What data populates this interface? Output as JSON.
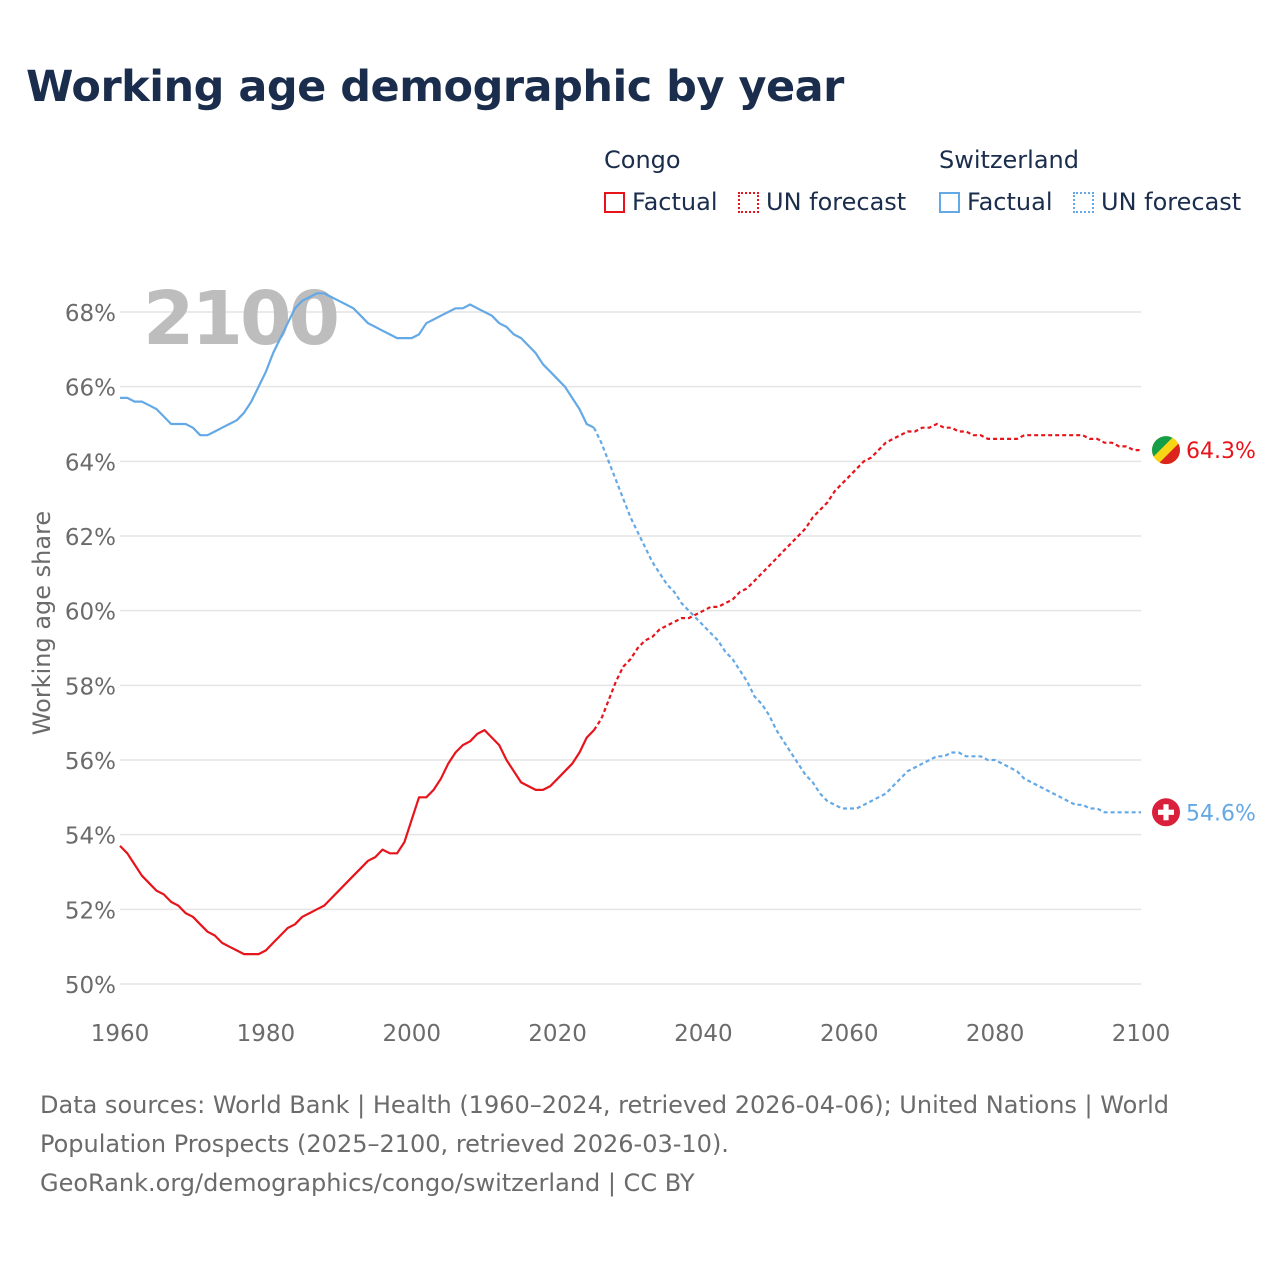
{
  "title": "Working age demographic by year",
  "legend": {
    "groups": [
      {
        "country": "Congo",
        "color": "#e8141c",
        "factual_label": "Factual",
        "forecast_label": "UN forecast"
      },
      {
        "country": "Switzerland",
        "color": "#64a9e6",
        "factual_label": "Factual",
        "forecast_label": "UN forecast"
      }
    ]
  },
  "footer": {
    "line1": "Data sources: World Bank | Health (1960–2024, retrieved 2026-04-06); United Nations | World",
    "line2": "Population Prospects (2025–2100, retrieved 2026-03-10).",
    "line3": "GeoRank.org/demographics/congo/switzerland | CC BY"
  },
  "chart_data": {
    "type": "line",
    "title": "Working age demographic by year",
    "year_watermark": "2100",
    "xlabel": "",
    "ylabel": "Working age share",
    "xlim": [
      1960,
      2100
    ],
    "ylim": [
      50,
      68
    ],
    "x_ticks": [
      1960,
      1980,
      2000,
      2020,
      2040,
      2060,
      2080,
      2100
    ],
    "x_tick_labels": [
      "1960",
      "1980",
      "2000",
      "2020",
      "2040",
      "2060",
      "2080",
      "2100"
    ],
    "y_ticks": [
      50,
      52,
      54,
      56,
      58,
      60,
      62,
      64,
      66,
      68
    ],
    "y_tick_labels": [
      "50%",
      "52%",
      "54%",
      "56%",
      "58%",
      "60%",
      "62%",
      "64%",
      "66%",
      "68%"
    ],
    "grid": true,
    "forecast_start_year": 2025,
    "series": [
      {
        "name": "Congo",
        "color": "#e8141c",
        "end_label": "64.3%",
        "flag_icon": "congo-flag-icon",
        "flag_colors": [
          "#149e48",
          "#f8d616",
          "#dc241f"
        ],
        "points": [
          [
            1960,
            53.7
          ],
          [
            1961,
            53.5
          ],
          [
            1962,
            53.2
          ],
          [
            1963,
            52.9
          ],
          [
            1964,
            52.7
          ],
          [
            1965,
            52.5
          ],
          [
            1966,
            52.4
          ],
          [
            1967,
            52.2
          ],
          [
            1968,
            52.1
          ],
          [
            1969,
            51.9
          ],
          [
            1970,
            51.8
          ],
          [
            1971,
            51.6
          ],
          [
            1972,
            51.4
          ],
          [
            1973,
            51.3
          ],
          [
            1974,
            51.1
          ],
          [
            1975,
            51.0
          ],
          [
            1976,
            50.9
          ],
          [
            1977,
            50.8
          ],
          [
            1978,
            50.8
          ],
          [
            1979,
            50.8
          ],
          [
            1980,
            50.9
          ],
          [
            1981,
            51.1
          ],
          [
            1982,
            51.3
          ],
          [
            1983,
            51.5
          ],
          [
            1984,
            51.6
          ],
          [
            1985,
            51.8
          ],
          [
            1986,
            51.9
          ],
          [
            1987,
            52.0
          ],
          [
            1988,
            52.1
          ],
          [
            1989,
            52.3
          ],
          [
            1990,
            52.5
          ],
          [
            1991,
            52.7
          ],
          [
            1992,
            52.9
          ],
          [
            1993,
            53.1
          ],
          [
            1994,
            53.3
          ],
          [
            1995,
            53.4
          ],
          [
            1996,
            53.6
          ],
          [
            1997,
            53.5
          ],
          [
            1998,
            53.5
          ],
          [
            1999,
            53.8
          ],
          [
            2000,
            54.4
          ],
          [
            2001,
            55.0
          ],
          [
            2002,
            55.0
          ],
          [
            2003,
            55.2
          ],
          [
            2004,
            55.5
          ],
          [
            2005,
            55.9
          ],
          [
            2006,
            56.2
          ],
          [
            2007,
            56.4
          ],
          [
            2008,
            56.5
          ],
          [
            2009,
            56.7
          ],
          [
            2010,
            56.8
          ],
          [
            2011,
            56.6
          ],
          [
            2012,
            56.4
          ],
          [
            2013,
            56.0
          ],
          [
            2014,
            55.7
          ],
          [
            2015,
            55.4
          ],
          [
            2016,
            55.3
          ],
          [
            2017,
            55.2
          ],
          [
            2018,
            55.2
          ],
          [
            2019,
            55.3
          ],
          [
            2020,
            55.5
          ],
          [
            2021,
            55.7
          ],
          [
            2022,
            55.9
          ],
          [
            2023,
            56.2
          ],
          [
            2024,
            56.6
          ],
          [
            2025,
            56.8
          ],
          [
            2026,
            57.1
          ],
          [
            2027,
            57.6
          ],
          [
            2028,
            58.1
          ],
          [
            2029,
            58.5
          ],
          [
            2030,
            58.7
          ],
          [
            2031,
            59.0
          ],
          [
            2032,
            59.2
          ],
          [
            2033,
            59.3
          ],
          [
            2034,
            59.5
          ],
          [
            2035,
            59.6
          ],
          [
            2036,
            59.7
          ],
          [
            2037,
            59.8
          ],
          [
            2038,
            59.8
          ],
          [
            2039,
            59.9
          ],
          [
            2040,
            60.0
          ],
          [
            2041,
            60.1
          ],
          [
            2042,
            60.1
          ],
          [
            2043,
            60.2
          ],
          [
            2044,
            60.3
          ],
          [
            2045,
            60.5
          ],
          [
            2046,
            60.6
          ],
          [
            2047,
            60.8
          ],
          [
            2048,
            61.0
          ],
          [
            2049,
            61.2
          ],
          [
            2050,
            61.4
          ],
          [
            2051,
            61.6
          ],
          [
            2052,
            61.8
          ],
          [
            2053,
            62.0
          ],
          [
            2054,
            62.2
          ],
          [
            2055,
            62.5
          ],
          [
            2056,
            62.7
          ],
          [
            2057,
            62.9
          ],
          [
            2058,
            63.2
          ],
          [
            2059,
            63.4
          ],
          [
            2060,
            63.6
          ],
          [
            2061,
            63.8
          ],
          [
            2062,
            64.0
          ],
          [
            2063,
            64.1
          ],
          [
            2064,
            64.3
          ],
          [
            2065,
            64.5
          ],
          [
            2066,
            64.6
          ],
          [
            2067,
            64.7
          ],
          [
            2068,
            64.8
          ],
          [
            2069,
            64.8
          ],
          [
            2070,
            64.9
          ],
          [
            2071,
            64.9
          ],
          [
            2072,
            65.0
          ],
          [
            2073,
            64.9
          ],
          [
            2074,
            64.9
          ],
          [
            2075,
            64.8
          ],
          [
            2076,
            64.8
          ],
          [
            2077,
            64.7
          ],
          [
            2078,
            64.7
          ],
          [
            2079,
            64.6
          ],
          [
            2080,
            64.6
          ],
          [
            2081,
            64.6
          ],
          [
            2082,
            64.6
          ],
          [
            2083,
            64.6
          ],
          [
            2084,
            64.7
          ],
          [
            2085,
            64.7
          ],
          [
            2086,
            64.7
          ],
          [
            2087,
            64.7
          ],
          [
            2088,
            64.7
          ],
          [
            2089,
            64.7
          ],
          [
            2090,
            64.7
          ],
          [
            2091,
            64.7
          ],
          [
            2092,
            64.7
          ],
          [
            2093,
            64.6
          ],
          [
            2094,
            64.6
          ],
          [
            2095,
            64.5
          ],
          [
            2096,
            64.5
          ],
          [
            2097,
            64.4
          ],
          [
            2098,
            64.4
          ],
          [
            2099,
            64.3
          ],
          [
            2100,
            64.3
          ]
        ]
      },
      {
        "name": "Switzerland",
        "color": "#64a9e6",
        "end_label": "54.6%",
        "flag_icon": "switzerland-flag-icon",
        "flag_colors": [
          "#da1f3d",
          "#ffffff"
        ],
        "points": [
          [
            1960,
            65.7
          ],
          [
            1961,
            65.7
          ],
          [
            1962,
            65.6
          ],
          [
            1963,
            65.6
          ],
          [
            1964,
            65.5
          ],
          [
            1965,
            65.4
          ],
          [
            1966,
            65.2
          ],
          [
            1967,
            65.0
          ],
          [
            1968,
            65.0
          ],
          [
            1969,
            65.0
          ],
          [
            1970,
            64.9
          ],
          [
            1971,
            64.7
          ],
          [
            1972,
            64.7
          ],
          [
            1973,
            64.8
          ],
          [
            1974,
            64.9
          ],
          [
            1975,
            65.0
          ],
          [
            1976,
            65.1
          ],
          [
            1977,
            65.3
          ],
          [
            1978,
            65.6
          ],
          [
            1979,
            66.0
          ],
          [
            1980,
            66.4
          ],
          [
            1981,
            66.9
          ],
          [
            1982,
            67.3
          ],
          [
            1983,
            67.7
          ],
          [
            1984,
            68.1
          ],
          [
            1985,
            68.3
          ],
          [
            1986,
            68.4
          ],
          [
            1987,
            68.5
          ],
          [
            1988,
            68.5
          ],
          [
            1989,
            68.4
          ],
          [
            1990,
            68.3
          ],
          [
            1991,
            68.2
          ],
          [
            1992,
            68.1
          ],
          [
            1993,
            67.9
          ],
          [
            1994,
            67.7
          ],
          [
            1995,
            67.6
          ],
          [
            1996,
            67.5
          ],
          [
            1997,
            67.4
          ],
          [
            1998,
            67.3
          ],
          [
            1999,
            67.3
          ],
          [
            2000,
            67.3
          ],
          [
            2001,
            67.4
          ],
          [
            2002,
            67.7
          ],
          [
            2003,
            67.8
          ],
          [
            2004,
            67.9
          ],
          [
            2005,
            68.0
          ],
          [
            2006,
            68.1
          ],
          [
            2007,
            68.1
          ],
          [
            2008,
            68.2
          ],
          [
            2009,
            68.1
          ],
          [
            2010,
            68.0
          ],
          [
            2011,
            67.9
          ],
          [
            2012,
            67.7
          ],
          [
            2013,
            67.6
          ],
          [
            2014,
            67.4
          ],
          [
            2015,
            67.3
          ],
          [
            2016,
            67.1
          ],
          [
            2017,
            66.9
          ],
          [
            2018,
            66.6
          ],
          [
            2019,
            66.4
          ],
          [
            2020,
            66.2
          ],
          [
            2021,
            66.0
          ],
          [
            2022,
            65.7
          ],
          [
            2023,
            65.4
          ],
          [
            2024,
            65.0
          ],
          [
            2025,
            64.9
          ],
          [
            2026,
            64.5
          ],
          [
            2027,
            64.0
          ],
          [
            2028,
            63.5
          ],
          [
            2029,
            63.0
          ],
          [
            2030,
            62.5
          ],
          [
            2031,
            62.1
          ],
          [
            2032,
            61.7
          ],
          [
            2033,
            61.3
          ],
          [
            2034,
            61.0
          ],
          [
            2035,
            60.7
          ],
          [
            2036,
            60.5
          ],
          [
            2037,
            60.2
          ],
          [
            2038,
            60.0
          ],
          [
            2039,
            59.8
          ],
          [
            2040,
            59.6
          ],
          [
            2041,
            59.4
          ],
          [
            2042,
            59.2
          ],
          [
            2043,
            58.9
          ],
          [
            2044,
            58.7
          ],
          [
            2045,
            58.4
          ],
          [
            2046,
            58.1
          ],
          [
            2047,
            57.7
          ],
          [
            2048,
            57.5
          ],
          [
            2049,
            57.2
          ],
          [
            2050,
            56.8
          ],
          [
            2051,
            56.5
          ],
          [
            2052,
            56.2
          ],
          [
            2053,
            55.9
          ],
          [
            2054,
            55.6
          ],
          [
            2055,
            55.4
          ],
          [
            2056,
            55.1
          ],
          [
            2057,
            54.9
          ],
          [
            2058,
            54.8
          ],
          [
            2059,
            54.7
          ],
          [
            2060,
            54.7
          ],
          [
            2061,
            54.7
          ],
          [
            2062,
            54.8
          ],
          [
            2063,
            54.9
          ],
          [
            2064,
            55.0
          ],
          [
            2065,
            55.1
          ],
          [
            2066,
            55.3
          ],
          [
            2067,
            55.5
          ],
          [
            2068,
            55.7
          ],
          [
            2069,
            55.8
          ],
          [
            2070,
            55.9
          ],
          [
            2071,
            56.0
          ],
          [
            2072,
            56.1
          ],
          [
            2073,
            56.1
          ],
          [
            2074,
            56.2
          ],
          [
            2075,
            56.2
          ],
          [
            2076,
            56.1
          ],
          [
            2077,
            56.1
          ],
          [
            2078,
            56.1
          ],
          [
            2079,
            56.0
          ],
          [
            2080,
            56.0
          ],
          [
            2081,
            55.9
          ],
          [
            2082,
            55.8
          ],
          [
            2083,
            55.7
          ],
          [
            2084,
            55.5
          ],
          [
            2085,
            55.4
          ],
          [
            2086,
            55.3
          ],
          [
            2087,
            55.2
          ],
          [
            2088,
            55.1
          ],
          [
            2089,
            55.0
          ],
          [
            2090,
            54.9
          ],
          [
            2091,
            54.8
          ],
          [
            2092,
            54.8
          ],
          [
            2093,
            54.7
          ],
          [
            2094,
            54.7
          ],
          [
            2095,
            54.6
          ],
          [
            2096,
            54.6
          ],
          [
            2097,
            54.6
          ],
          [
            2098,
            54.6
          ],
          [
            2099,
            54.6
          ],
          [
            2100,
            54.6
          ]
        ]
      }
    ]
  }
}
